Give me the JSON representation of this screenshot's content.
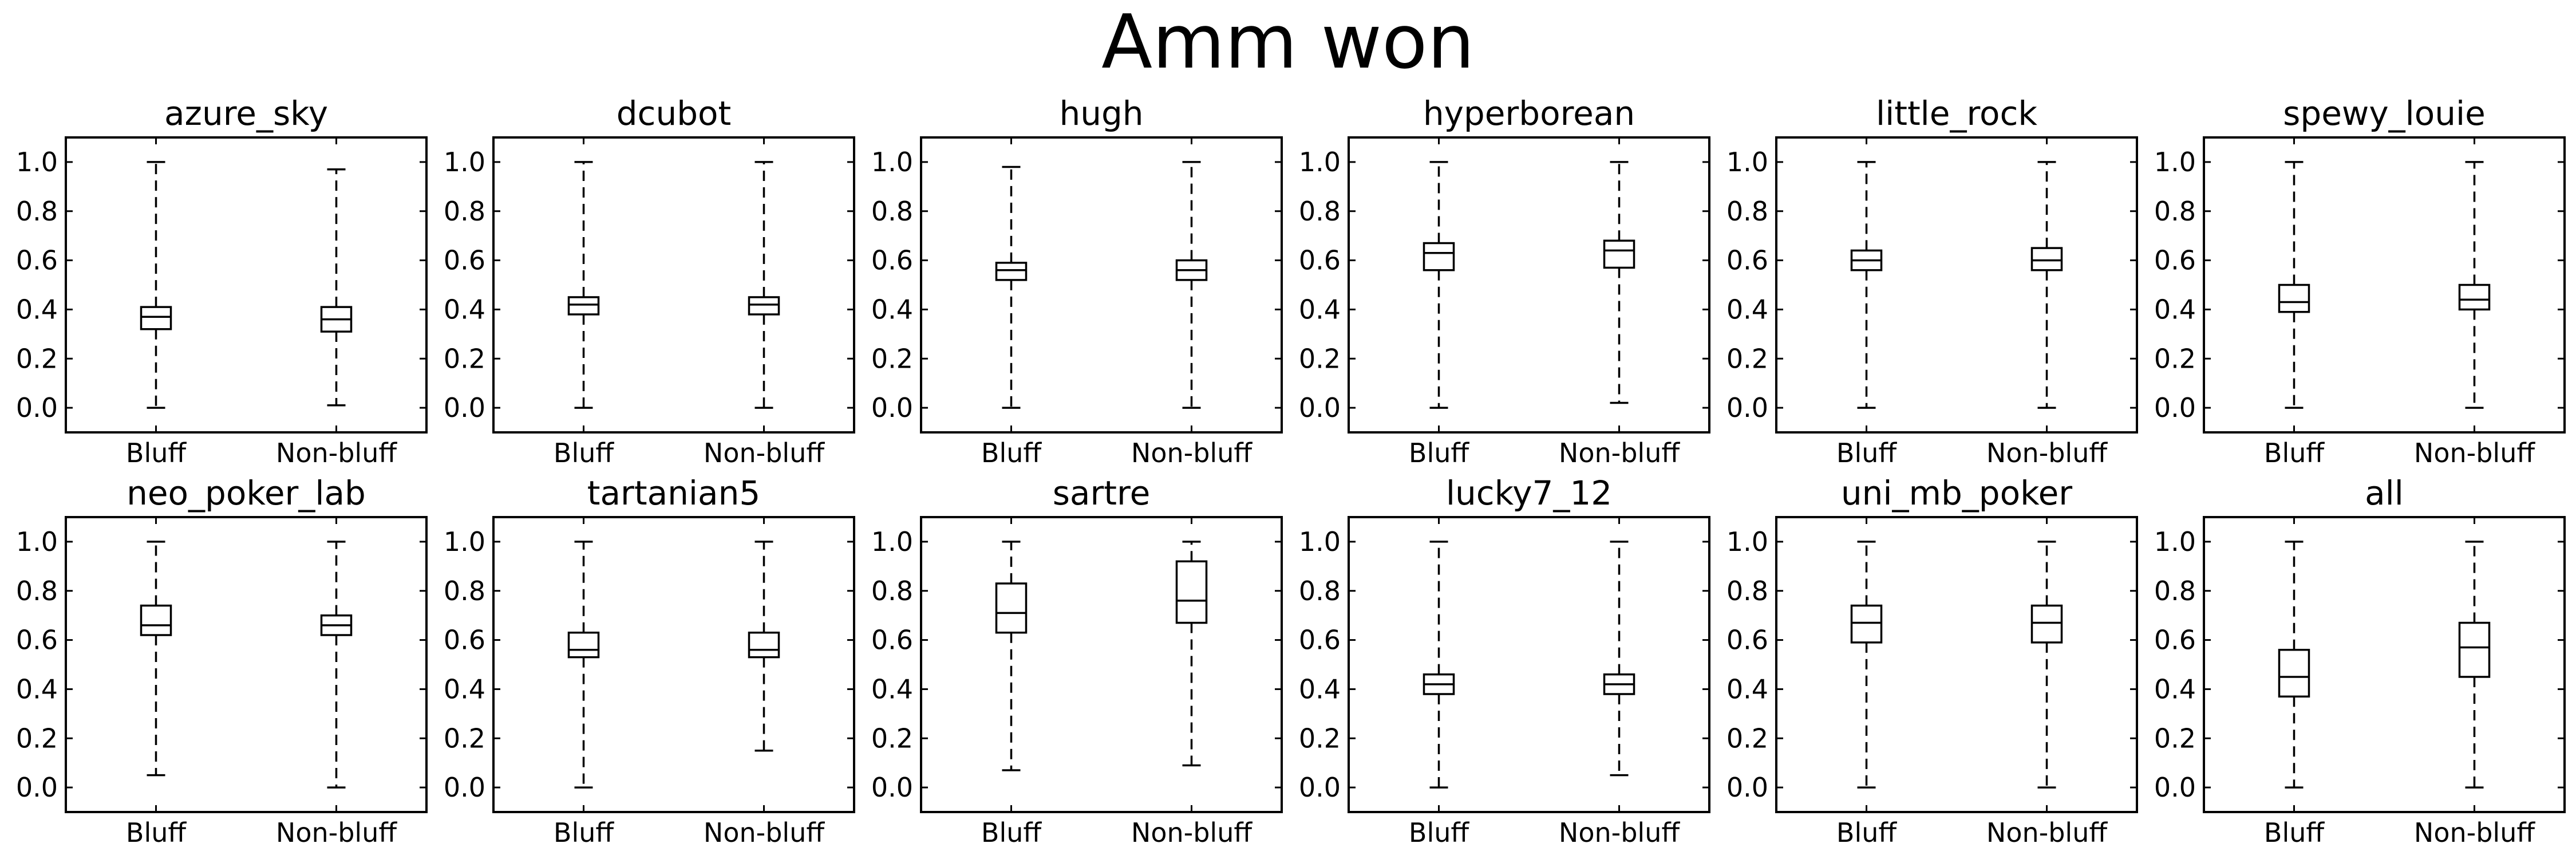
{
  "title": "Amm won",
  "chart_data": {
    "type": "box",
    "title": "Amm won",
    "layout": {
      "rows": 2,
      "cols": 6
    },
    "categories": [
      "Bluff",
      "Non-bluff"
    ],
    "ylim": [
      -0.1,
      1.1
    ],
    "yticks": [
      0.0,
      0.2,
      0.4,
      0.6,
      0.8,
      1.0
    ],
    "ytick_labels": [
      "0.0",
      "0.2",
      "0.4",
      "0.6",
      "0.8",
      "1.0"
    ],
    "grid": false,
    "panels": [
      {
        "title": "azure_sky",
        "boxes": [
          {
            "label": "Bluff",
            "whislo": 0.0,
            "q1": 0.32,
            "med": 0.37,
            "q3": 0.41,
            "whishi": 1.0
          },
          {
            "label": "Non-bluff",
            "whislo": 0.01,
            "q1": 0.31,
            "med": 0.36,
            "q3": 0.41,
            "whishi": 0.97
          }
        ]
      },
      {
        "title": "dcubot",
        "boxes": [
          {
            "label": "Bluff",
            "whislo": 0.0,
            "q1": 0.38,
            "med": 0.42,
            "q3": 0.45,
            "whishi": 1.0
          },
          {
            "label": "Non-bluff",
            "whislo": 0.0,
            "q1": 0.38,
            "med": 0.42,
            "q3": 0.45,
            "whishi": 1.0
          }
        ]
      },
      {
        "title": "hugh",
        "boxes": [
          {
            "label": "Bluff",
            "whislo": 0.0,
            "q1": 0.52,
            "med": 0.56,
            "q3": 0.59,
            "whishi": 0.98
          },
          {
            "label": "Non-bluff",
            "whislo": 0.0,
            "q1": 0.52,
            "med": 0.56,
            "q3": 0.6,
            "whishi": 1.0
          }
        ]
      },
      {
        "title": "hyperborean",
        "boxes": [
          {
            "label": "Bluff",
            "whislo": 0.0,
            "q1": 0.56,
            "med": 0.63,
            "q3": 0.67,
            "whishi": 1.0
          },
          {
            "label": "Non-bluff",
            "whislo": 0.02,
            "q1": 0.57,
            "med": 0.64,
            "q3": 0.68,
            "whishi": 1.0
          }
        ]
      },
      {
        "title": "little_rock",
        "boxes": [
          {
            "label": "Bluff",
            "whislo": 0.0,
            "q1": 0.56,
            "med": 0.6,
            "q3": 0.64,
            "whishi": 1.0
          },
          {
            "label": "Non-bluff",
            "whislo": 0.0,
            "q1": 0.56,
            "med": 0.6,
            "q3": 0.65,
            "whishi": 1.0
          }
        ]
      },
      {
        "title": "spewy_louie",
        "boxes": [
          {
            "label": "Bluff",
            "whislo": 0.0,
            "q1": 0.39,
            "med": 0.43,
            "q3": 0.5,
            "whishi": 1.0
          },
          {
            "label": "Non-bluff",
            "whislo": 0.0,
            "q1": 0.4,
            "med": 0.44,
            "q3": 0.5,
            "whishi": 1.0
          }
        ]
      },
      {
        "title": "neo_poker_lab",
        "boxes": [
          {
            "label": "Bluff",
            "whislo": 0.05,
            "q1": 0.62,
            "med": 0.66,
            "q3": 0.74,
            "whishi": 1.0
          },
          {
            "label": "Non-bluff",
            "whislo": 0.0,
            "q1": 0.62,
            "med": 0.66,
            "q3": 0.7,
            "whishi": 1.0
          }
        ]
      },
      {
        "title": "tartanian5",
        "boxes": [
          {
            "label": "Bluff",
            "whislo": 0.0,
            "q1": 0.53,
            "med": 0.56,
            "q3": 0.63,
            "whishi": 1.0
          },
          {
            "label": "Non-bluff",
            "whislo": 0.15,
            "q1": 0.53,
            "med": 0.56,
            "q3": 0.63,
            "whishi": 1.0
          }
        ]
      },
      {
        "title": "sartre",
        "boxes": [
          {
            "label": "Bluff",
            "whislo": 0.07,
            "q1": 0.63,
            "med": 0.71,
            "q3": 0.83,
            "whishi": 1.0
          },
          {
            "label": "Non-bluff",
            "whislo": 0.09,
            "q1": 0.67,
            "med": 0.76,
            "q3": 0.92,
            "whishi": 1.0
          }
        ]
      },
      {
        "title": "lucky7_12",
        "boxes": [
          {
            "label": "Bluff",
            "whislo": 0.0,
            "q1": 0.38,
            "med": 0.42,
            "q3": 0.46,
            "whishi": 1.0
          },
          {
            "label": "Non-bluff",
            "whislo": 0.05,
            "q1": 0.38,
            "med": 0.42,
            "q3": 0.46,
            "whishi": 1.0
          }
        ]
      },
      {
        "title": "uni_mb_poker",
        "boxes": [
          {
            "label": "Bluff",
            "whislo": 0.0,
            "q1": 0.59,
            "med": 0.67,
            "q3": 0.74,
            "whishi": 1.0
          },
          {
            "label": "Non-bluff",
            "whislo": 0.0,
            "q1": 0.59,
            "med": 0.67,
            "q3": 0.74,
            "whishi": 1.0
          }
        ]
      },
      {
        "title": "all",
        "boxes": [
          {
            "label": "Bluff",
            "whislo": 0.0,
            "q1": 0.37,
            "med": 0.45,
            "q3": 0.56,
            "whishi": 1.0
          },
          {
            "label": "Non-bluff",
            "whislo": 0.0,
            "q1": 0.45,
            "med": 0.57,
            "q3": 0.67,
            "whishi": 1.0
          }
        ]
      }
    ]
  }
}
